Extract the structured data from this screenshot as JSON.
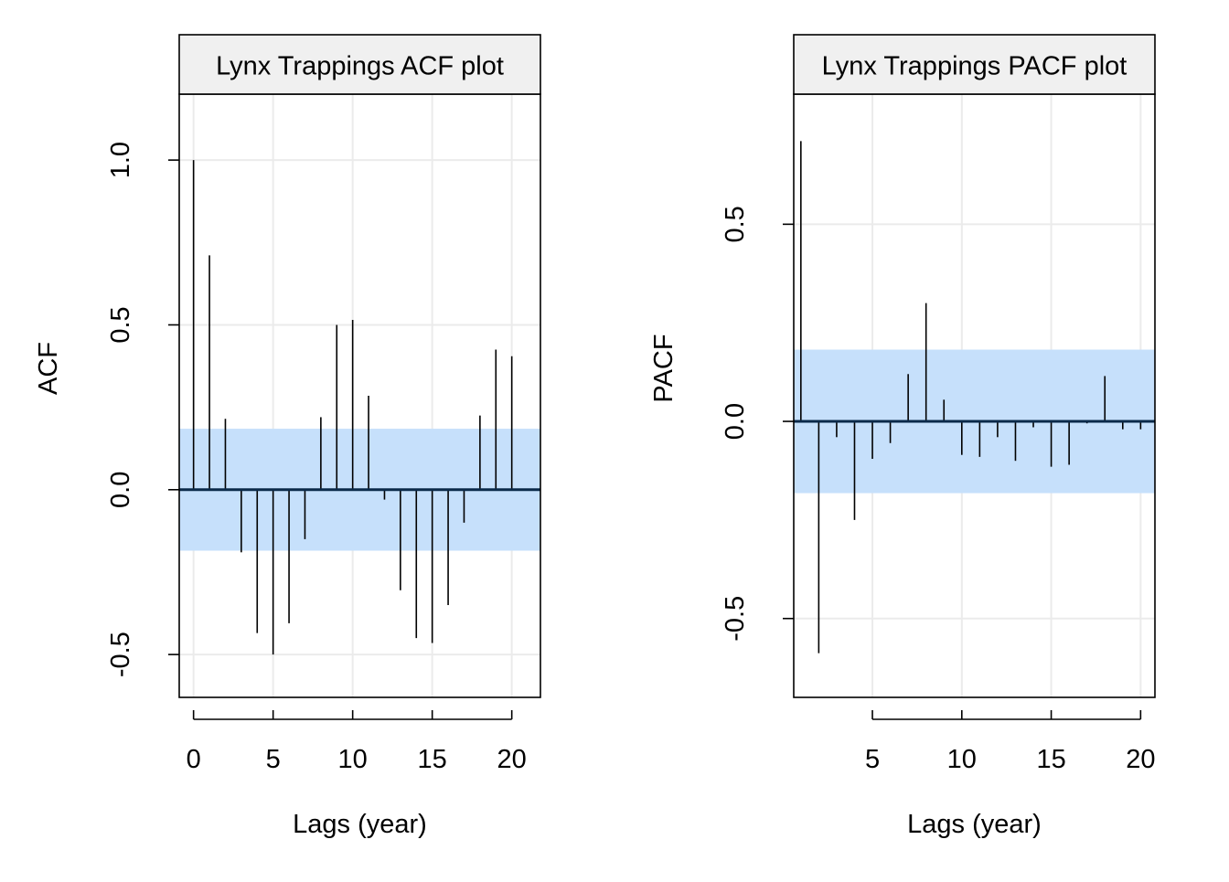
{
  "chart_data": [
    {
      "type": "bar",
      "title": "Lynx Trappings ACF plot",
      "xlabel": "Lags (year)",
      "ylabel": "ACF",
      "xlim": [
        -0.9,
        21.8
      ],
      "ylim": [
        -0.63,
        1.2
      ],
      "xticks": [
        0,
        5,
        10,
        15,
        20
      ],
      "xtick_labels": [
        "0",
        "5",
        "10",
        "15",
        "20"
      ],
      "yticks": [
        -0.5,
        0.0,
        0.5,
        1.0
      ],
      "ytick_labels": [
        "-0.5",
        "0.0",
        "0.5",
        "1.0"
      ],
      "grid": true,
      "confidence_band": [
        -0.185,
        0.185
      ],
      "band_color": "#c6e0fb",
      "x": [
        0,
        1,
        2,
        3,
        4,
        5,
        6,
        7,
        8,
        9,
        10,
        11,
        12,
        13,
        14,
        15,
        16,
        17,
        18,
        19,
        20
      ],
      "values": [
        1.0,
        0.711,
        0.215,
        -0.19,
        -0.435,
        -0.5,
        -0.405,
        -0.15,
        0.22,
        0.5,
        0.515,
        0.285,
        -0.03,
        -0.305,
        -0.45,
        -0.465,
        -0.35,
        -0.1,
        0.225,
        0.425,
        0.405
      ]
    },
    {
      "type": "bar",
      "title": "Lynx Trappings PACF plot",
      "xlabel": "Lags (year)",
      "ylabel": "PACF",
      "xlim": [
        0.6,
        20.8
      ],
      "ylim": [
        -0.7,
        0.83
      ],
      "xticks": [
        5,
        10,
        15,
        20
      ],
      "xtick_labels": [
        "5",
        "10",
        "15",
        "20"
      ],
      "yticks": [
        -0.5,
        0.0,
        0.5
      ],
      "ytick_labels": [
        "-0.5",
        "0.0",
        "0.5"
      ],
      "grid": true,
      "confidence_band": [
        -0.182,
        0.182
      ],
      "band_color": "#c6e0fb",
      "x": [
        1,
        2,
        3,
        4,
        5,
        6,
        7,
        8,
        9,
        10,
        11,
        12,
        13,
        14,
        15,
        16,
        17,
        18,
        19,
        20
      ],
      "values": [
        0.711,
        -0.588,
        -0.04,
        -0.25,
        -0.095,
        -0.055,
        0.12,
        0.3,
        0.055,
        -0.085,
        -0.09,
        -0.04,
        -0.1,
        -0.015,
        -0.115,
        -0.11,
        -0.005,
        0.115,
        -0.02,
        -0.02
      ]
    }
  ]
}
